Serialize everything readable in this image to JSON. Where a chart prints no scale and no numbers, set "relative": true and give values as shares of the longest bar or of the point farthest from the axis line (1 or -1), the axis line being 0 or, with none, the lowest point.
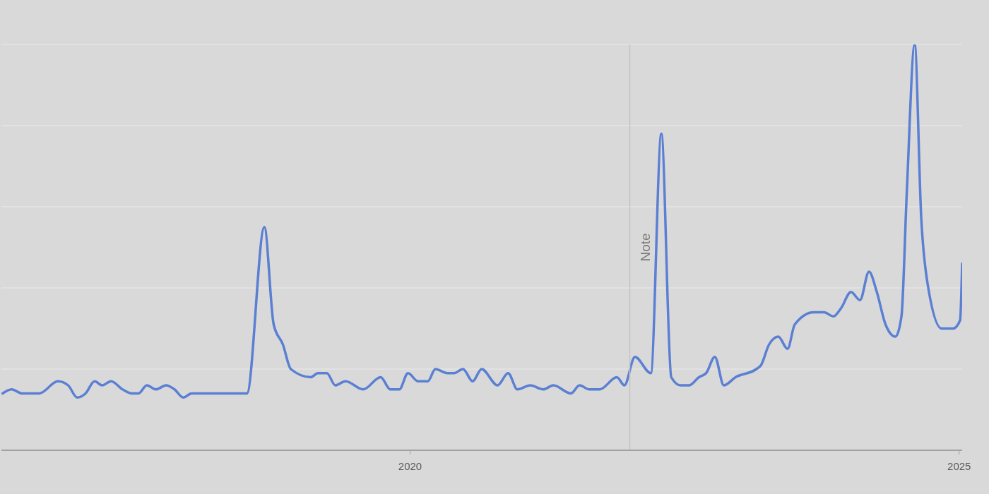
{
  "chart_data": {
    "type": "line",
    "relative": true,
    "color": "#5a7fd3",
    "grid": "y",
    "x": [
      "2016-04-15",
      "2016-05-15",
      "2016-06-19",
      "2016-08-15",
      "2016-10-16",
      "2016-11-19",
      "2016-12-19",
      "2017-01-16",
      "2017-02-15",
      "2017-03-12",
      "2017-04-11",
      "2017-05-19",
      "2017-06-19",
      "2017-07-11",
      "2017-08-08",
      "2017-09-07",
      "2017-10-11",
      "2017-11-08",
      "2017-12-07",
      "2018-01-04",
      "2018-07-07",
      "2018-09-03",
      "2018-10-04",
      "2018-11-04",
      "2018-11-30",
      "2019-02-04",
      "2019-03-01",
      "2019-03-30",
      "2019-04-27",
      "2019-05-31",
      "2019-07-29",
      "2019-09-25",
      "2019-10-27",
      "2019-11-26",
      "2019-12-25",
      "2020-01-27",
      "2020-02-29",
      "2020-03-25",
      "2020-05-04",
      "2020-05-26",
      "2020-06-25",
      "2020-07-27",
      "2020-08-26",
      "2020-10-18",
      "2020-11-22",
      "2020-12-23",
      "2021-02-04",
      "2021-03-19",
      "2021-04-22",
      "2021-06-19",
      "2021-07-18",
      "2021-08-19",
      "2021-09-23",
      "2021-11-19",
      "2021-12-14",
      "2022-01-18",
      "2022-03-12",
      "2022-04-16",
      "2022-05-19",
      "2022-06-19",
      "2022-07-18",
      "2022-08-19",
      "2022-09-12",
      "2022-10-11",
      "2022-11-10",
      "2022-12-19",
      "2023-02-26",
      "2023-03-14",
      "2023-04-09",
      "2023-05-10",
      "2023-06-10",
      "2023-07-04",
      "2023-09-05",
      "2023-10-09",
      "2023-11-10",
      "2023-12-05",
      "2024-01-07",
      "2024-02-06",
      "2024-03-07",
      "2024-04-02",
      "2024-05-01",
      "2024-06-03",
      "2024-06-23",
      "2024-07-11",
      "2024-08-06",
      "2024-08-28",
      "2024-09-16",
      "2024-11-04",
      "2024-12-12",
      "2025-01-04",
      "2025-01-11"
    ],
    "values": [
      0.14,
      0.15,
      0.14,
      0.14,
      0.17,
      0.16,
      0.13,
      0.14,
      0.17,
      0.16,
      0.17,
      0.15,
      0.14,
      0.14,
      0.16,
      0.15,
      0.16,
      0.15,
      0.13,
      0.14,
      0.14,
      0.55,
      0.31,
      0.26,
      0.2,
      0.18,
      0.19,
      0.19,
      0.16,
      0.17,
      0.15,
      0.18,
      0.15,
      0.15,
      0.19,
      0.17,
      0.17,
      0.2,
      0.19,
      0.19,
      0.2,
      0.17,
      0.2,
      0.16,
      0.19,
      0.15,
      0.16,
      0.15,
      0.16,
      0.14,
      0.16,
      0.15,
      0.15,
      0.18,
      0.16,
      0.23,
      0.19,
      0.78,
      0.18,
      0.16,
      0.16,
      0.18,
      0.19,
      0.23,
      0.16,
      0.18,
      0.2,
      0.21,
      0.26,
      0.28,
      0.25,
      0.31,
      0.34,
      0.34,
      0.33,
      0.35,
      0.39,
      0.37,
      0.44,
      0.39,
      0.31,
      0.28,
      0.33,
      0.64,
      1,
      0.57,
      0.42,
      0.3,
      0.3,
      0.32,
      0.46
    ],
    "xlim": [
      "2016-04-11",
      "2025-01-11"
    ],
    "xticks": [
      {
        "value": "2020-01-01",
        "label": "2020"
      },
      {
        "value": "2025-01-01",
        "label": "2025"
      }
    ],
    "ref_lines": [
      {
        "axis": "x",
        "value": "2022-01-01",
        "label": "Note",
        "color": "#c4c4c4"
      }
    ]
  }
}
